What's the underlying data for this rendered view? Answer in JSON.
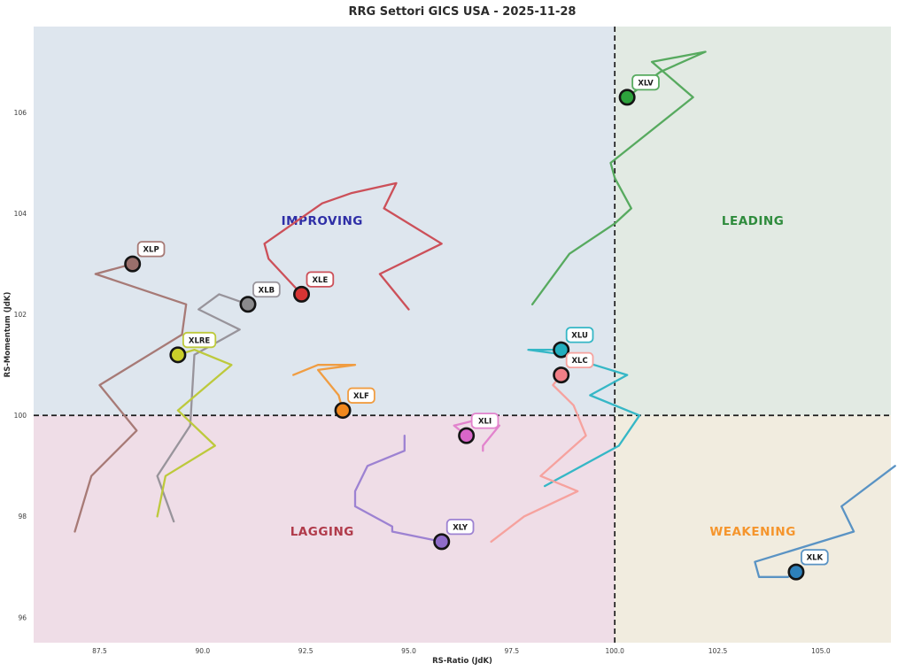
{
  "chart_data": {
    "type": "scatter",
    "title": "RRG Settori GICS USA - 2025-11-28",
    "xlabel": "RS-Ratio (JdK)",
    "ylabel": "RS-Momentum (JdK)",
    "xlim": [
      85.9,
      106.7
    ],
    "ylim": [
      95.5,
      107.7
    ],
    "x_ticks": [
      "87.5",
      "90.0",
      "92.5",
      "95.0",
      "97.5",
      "100.0",
      "102.5",
      "105.0"
    ],
    "y_ticks": [
      "96",
      "98",
      "100",
      "102",
      "104",
      "106"
    ],
    "center_x": 100,
    "center_y": 100,
    "grid": false,
    "legend": "none",
    "crosshair_color": "#1c1c1c",
    "quadrants": [
      {
        "id": "improving",
        "label": "IMPROVING",
        "label_color": "#2e2ea6",
        "bg": "#dee6ee",
        "label_pos": [
          92.9,
          103.85
        ]
      },
      {
        "id": "leading",
        "label": "LEADING",
        "label_color": "#2e8b3c",
        "bg": "#e2eae3",
        "label_pos": [
          103.35,
          103.85
        ]
      },
      {
        "id": "lagging",
        "label": "LAGGING",
        "label_color": "#b03a4a",
        "bg": "#efdde7",
        "label_pos": [
          92.9,
          97.7
        ]
      },
      {
        "id": "weakening",
        "label": "WEAKENING",
        "label_color": "#f5952d",
        "bg": "#f1ecdf",
        "label_pos": [
          103.35,
          97.7
        ]
      }
    ],
    "series": [
      {
        "symbol": "XLP",
        "line": "#a77a76",
        "marker": "#9a6f6b",
        "trail": [
          [
            86.9,
            97.7
          ],
          [
            87.3,
            98.8
          ],
          [
            88.4,
            99.7
          ],
          [
            87.5,
            100.6
          ],
          [
            89.5,
            101.6
          ],
          [
            89.6,
            102.2
          ],
          [
            87.4,
            102.8
          ],
          [
            88.3,
            103.0
          ]
        ]
      },
      {
        "symbol": "XLB",
        "line": "#98949b",
        "marker": "#8a8a8c",
        "trail": [
          [
            89.3,
            97.9
          ],
          [
            88.9,
            98.8
          ],
          [
            89.7,
            99.8
          ],
          [
            89.8,
            101.2
          ],
          [
            90.9,
            101.7
          ],
          [
            89.9,
            102.1
          ],
          [
            90.4,
            102.4
          ],
          [
            91.1,
            102.2
          ]
        ]
      },
      {
        "symbol": "XLRE",
        "line": "#bdc93c",
        "marker": "#c9ce2a",
        "trail": [
          [
            88.9,
            98.0
          ],
          [
            89.1,
            98.8
          ],
          [
            90.3,
            99.4
          ],
          [
            89.4,
            100.1
          ],
          [
            90.7,
            101.0
          ],
          [
            89.8,
            101.3
          ],
          [
            89.4,
            101.2
          ]
        ]
      },
      {
        "symbol": "XLE",
        "line": "#cc5059",
        "marker": "#d63434",
        "trail": [
          [
            95.0,
            102.1
          ],
          [
            94.3,
            102.8
          ],
          [
            95.8,
            103.4
          ],
          [
            94.4,
            104.1
          ],
          [
            94.7,
            104.6
          ],
          [
            93.6,
            104.4
          ],
          [
            92.9,
            104.2
          ],
          [
            91.5,
            103.4
          ],
          [
            91.6,
            103.1
          ],
          [
            92.4,
            102.4
          ]
        ]
      },
      {
        "symbol": "XLF",
        "line": "#f09d42",
        "marker": "#f0871d",
        "trail": [
          [
            92.2,
            100.8
          ],
          [
            92.8,
            101.0
          ],
          [
            93.7,
            101.0
          ],
          [
            92.8,
            100.9
          ],
          [
            93.3,
            100.4
          ],
          [
            93.4,
            100.1
          ]
        ]
      },
      {
        "symbol": "XLI",
        "line": "#e283cd",
        "marker": "#d966c9",
        "trail": [
          [
            96.8,
            99.3
          ],
          [
            96.8,
            99.4
          ],
          [
            97.2,
            99.8
          ],
          [
            96.6,
            99.9
          ],
          [
            96.1,
            99.8
          ],
          [
            96.4,
            99.6
          ]
        ]
      },
      {
        "symbol": "XLY",
        "line": "#9d82d2",
        "marker": "#8f6cc9",
        "trail": [
          [
            94.9,
            99.6
          ],
          [
            94.9,
            99.3
          ],
          [
            94.0,
            99.0
          ],
          [
            93.7,
            98.5
          ],
          [
            93.7,
            98.2
          ],
          [
            94.6,
            97.8
          ],
          [
            94.6,
            97.7
          ],
          [
            95.8,
            97.5
          ]
        ]
      },
      {
        "symbol": "XLU",
        "line": "#35b7c6",
        "marker": "#23aebe",
        "trail": [
          [
            98.3,
            98.6
          ],
          [
            100.1,
            99.4
          ],
          [
            100.6,
            100.0
          ],
          [
            99.4,
            100.4
          ],
          [
            100.3,
            100.8
          ],
          [
            99.5,
            101.0
          ],
          [
            98.8,
            101.2
          ],
          [
            97.9,
            101.3
          ],
          [
            98.7,
            101.3
          ]
        ]
      },
      {
        "symbol": "XLC",
        "line": "#f6a29e",
        "marker": "#f17f87",
        "trail": [
          [
            97.0,
            97.5
          ],
          [
            97.8,
            98.0
          ],
          [
            99.1,
            98.5
          ],
          [
            98.2,
            98.8
          ],
          [
            99.3,
            99.6
          ],
          [
            99.0,
            100.2
          ],
          [
            98.5,
            100.6
          ],
          [
            98.7,
            100.8
          ]
        ]
      },
      {
        "symbol": "XLV",
        "line": "#57aa5f",
        "marker": "#2da13c",
        "trail": [
          [
            98.0,
            102.2
          ],
          [
            98.9,
            103.2
          ],
          [
            100.0,
            103.8
          ],
          [
            100.4,
            104.1
          ],
          [
            100.0,
            104.7
          ],
          [
            99.9,
            105.0
          ],
          [
            101.9,
            106.3
          ],
          [
            100.9,
            107.0
          ],
          [
            102.2,
            107.2
          ],
          [
            101.1,
            106.8
          ],
          [
            100.3,
            106.3
          ]
        ]
      },
      {
        "symbol": "XLK",
        "line": "#5a93c4",
        "marker": "#2d80ba",
        "trail": [
          [
            106.8,
            99.0
          ],
          [
            105.5,
            98.2
          ],
          [
            105.8,
            97.7
          ],
          [
            103.4,
            97.1
          ],
          [
            103.5,
            96.8
          ],
          [
            104.2,
            96.8
          ],
          [
            104.4,
            96.9
          ]
        ]
      }
    ]
  }
}
